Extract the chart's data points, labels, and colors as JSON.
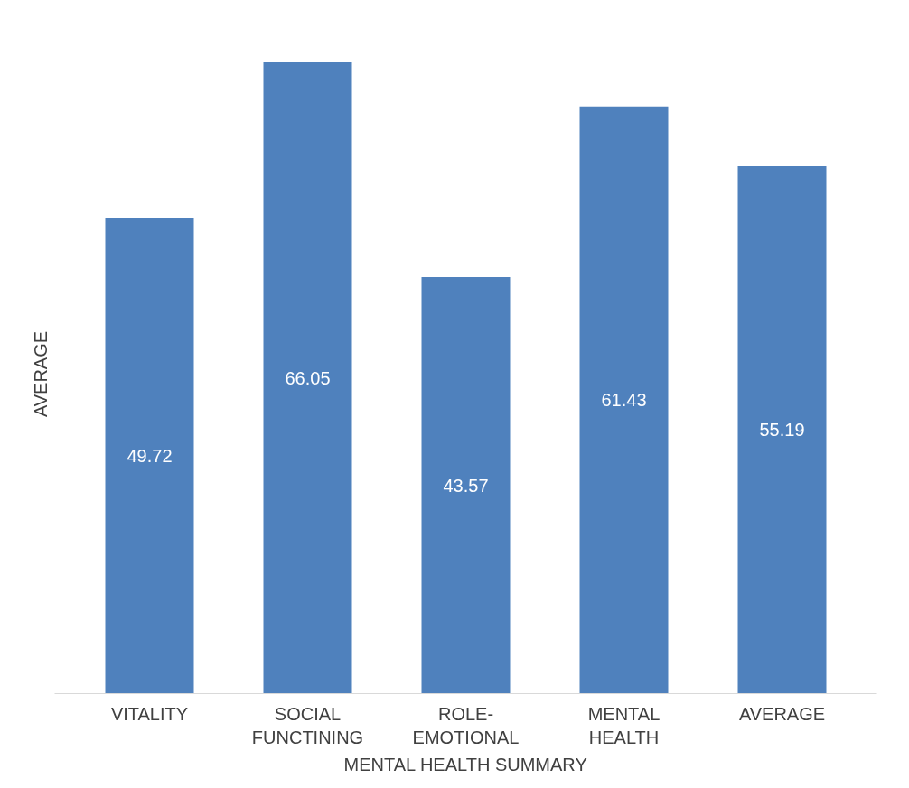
{
  "chart_data": {
    "type": "bar",
    "xlabel": "MENTAL HEALTH SUMMARY",
    "ylabel": "AVERAGE",
    "categories": [
      "VITALITY",
      "SOCIAL FUNCTINING",
      "ROLE-EMOTIONAL",
      "MENTAL HEALTH",
      "AVERAGE"
    ],
    "values": [
      49.72,
      66.05,
      43.57,
      61.43,
      55.19
    ],
    "color": "#4f81bd",
    "data_labels": true,
    "grid": false
  }
}
